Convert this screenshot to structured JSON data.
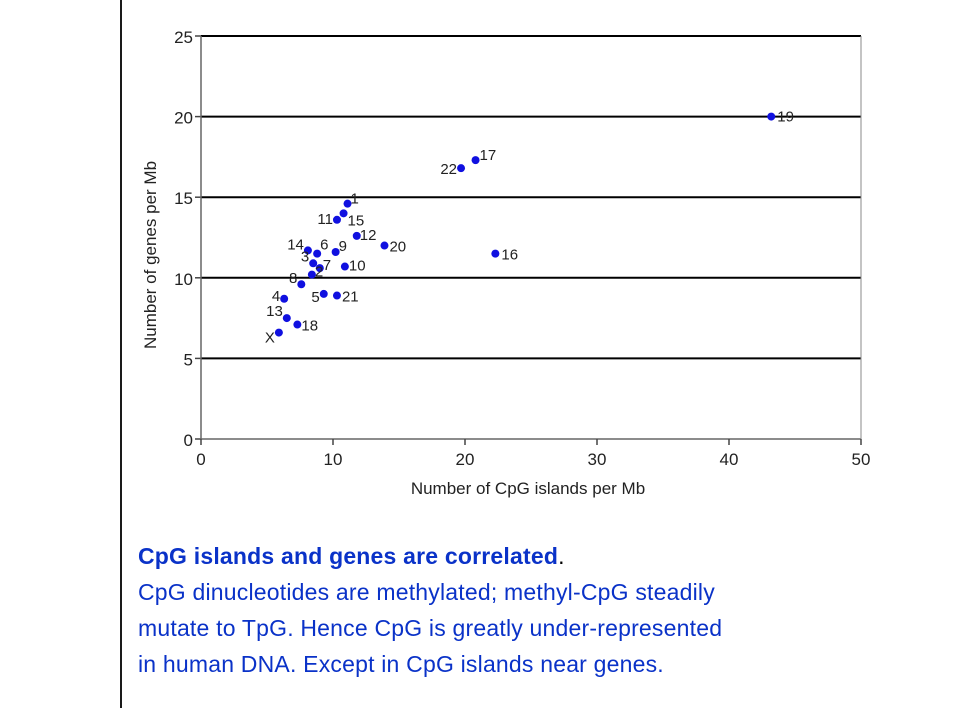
{
  "chart_data": {
    "type": "scatter",
    "xlabel": "Number of CpG islands per Mb",
    "ylabel": "Number of genes per Mb",
    "xlim": [
      0,
      50
    ],
    "ylim": [
      0,
      25
    ],
    "x_ticks": [
      "0",
      "10",
      "20",
      "30",
      "40",
      "50"
    ],
    "y_ticks": [
      "0",
      "5",
      "10",
      "15",
      "20",
      "25"
    ],
    "grid": "horizontal",
    "point_color": "#1010e0",
    "gridline_color": "#000000",
    "points": [
      {
        "label": "19",
        "x": 43.2,
        "y": 20.0
      },
      {
        "label": "17",
        "x": 20.8,
        "y": 17.3
      },
      {
        "label": "22",
        "x": 19.7,
        "y": 16.8
      },
      {
        "label": "16",
        "x": 22.3,
        "y": 11.5
      },
      {
        "label": "1",
        "x": 11.1,
        "y": 14.6
      },
      {
        "label": "15",
        "x": 10.8,
        "y": 14.0
      },
      {
        "label": "11",
        "x": 10.3,
        "y": 13.6
      },
      {
        "label": "12",
        "x": 11.8,
        "y": 12.6
      },
      {
        "label": "20",
        "x": 13.9,
        "y": 12.0
      },
      {
        "label": "9",
        "x": 10.2,
        "y": 11.6
      },
      {
        "label": "14",
        "x": 8.1,
        "y": 11.7
      },
      {
        "label": "6",
        "x": 8.8,
        "y": 11.5
      },
      {
        "label": "3",
        "x": 8.5,
        "y": 10.9
      },
      {
        "label": "7",
        "x": 9.0,
        "y": 10.6
      },
      {
        "label": "10",
        "x": 10.9,
        "y": 10.7
      },
      {
        "label": "2",
        "x": 8.4,
        "y": 10.2
      },
      {
        "label": "8",
        "x": 7.6,
        "y": 9.6
      },
      {
        "label": "5",
        "x": 9.3,
        "y": 9.0
      },
      {
        "label": "21",
        "x": 10.3,
        "y": 8.9
      },
      {
        "label": "4",
        "x": 6.3,
        "y": 8.7
      },
      {
        "label": "13",
        "x": 6.5,
        "y": 7.5
      },
      {
        "label": "18",
        "x": 7.3,
        "y": 7.1
      },
      {
        "label": "X",
        "x": 5.9,
        "y": 6.6
      }
    ]
  },
  "caption": {
    "headline": "CpG islands and genes are correlated",
    "headline_period": ".",
    "line2": "CpG dinucleotides are methylated; methyl-CpG steadily",
    "line3": "mutate to TpG.  Hence CpG is greatly under-represented",
    "line4": "in human DNA.  Except in CpG islands near genes."
  }
}
